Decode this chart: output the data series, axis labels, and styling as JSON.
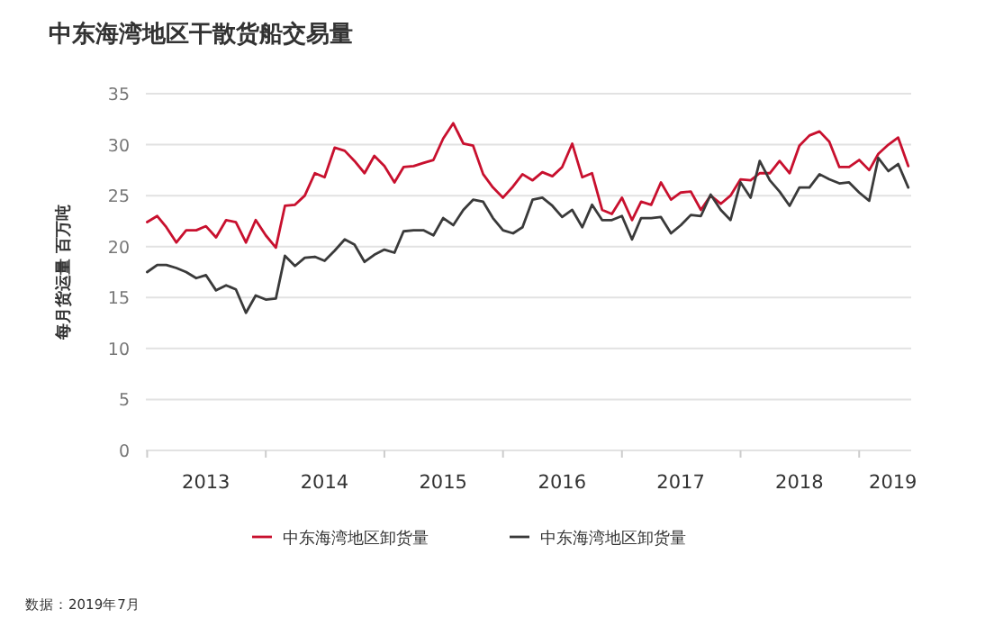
{
  "chart_data": {
    "type": "line",
    "title": "中东海湾地区干散货船交易量",
    "ylabel": "每月货运量 百万吨",
    "annotations": [
      "数据：2019年7月"
    ],
    "x": [
      "2013-01",
      "2013-02",
      "2013-03",
      "2013-04",
      "2013-05",
      "2013-06",
      "2013-07",
      "2013-08",
      "2013-09",
      "2013-10",
      "2013-11",
      "2013-12",
      "2014-01",
      "2014-02",
      "2014-03",
      "2014-04",
      "2014-05",
      "2014-06",
      "2014-07",
      "2014-08",
      "2014-09",
      "2014-10",
      "2014-11",
      "2014-12",
      "2015-01",
      "2015-02",
      "2015-03",
      "2015-04",
      "2015-05",
      "2015-06",
      "2015-07",
      "2015-08",
      "2015-09",
      "2015-10",
      "2015-11",
      "2015-12",
      "2016-01",
      "2016-02",
      "2016-03",
      "2016-04",
      "2016-05",
      "2016-06",
      "2016-07",
      "2016-08",
      "2016-09",
      "2016-10",
      "2016-11",
      "2016-12",
      "2017-01",
      "2017-02",
      "2017-03",
      "2017-04",
      "2017-05",
      "2017-06",
      "2017-07",
      "2017-08",
      "2017-09",
      "2017-10",
      "2017-11",
      "2017-12",
      "2018-01",
      "2018-02",
      "2018-03",
      "2018-04",
      "2018-05",
      "2018-06",
      "2018-07",
      "2018-08",
      "2018-09",
      "2018-10",
      "2018-11",
      "2018-12",
      "2019-01",
      "2019-02",
      "2019-03",
      "2019-04",
      "2019-05",
      "2019-06"
    ],
    "series": [
      {
        "name": "中东海湾地区卸货量",
        "color": "#c8102e",
        "values": [
          22.4,
          23,
          21.9,
          20.4,
          21.6,
          21.6,
          22,
          20.9,
          22.6,
          22.4,
          20.4,
          22.6,
          21.1,
          19.9,
          24,
          24.1,
          25,
          27.2,
          26.8,
          29.7,
          29.4,
          28.4,
          27.2,
          28.9,
          27.9,
          26.3,
          27.8,
          27.9,
          28.2,
          28.5,
          30.6,
          32.1,
          30.1,
          29.9,
          27.1,
          25.8,
          24.8,
          25.9,
          27.1,
          26.5,
          27.3,
          26.9,
          27.8,
          30.1,
          26.8,
          27.2,
          23.6,
          23.2,
          24.8,
          22.6,
          24.4,
          24.1,
          26.3,
          24.6,
          25.3,
          25.4,
          23.6,
          25,
          24.2,
          25,
          26.6,
          26.5,
          27.2,
          27.2,
          28.4,
          27.2,
          29.9,
          30.9,
          31.3,
          30.3,
          27.8,
          27.8,
          28.5,
          27.5,
          29.1,
          30,
          30.7,
          27.9
        ]
      },
      {
        "name": "中东海湾地区卸货量",
        "color": "#3a3a3a",
        "values": [
          17.5,
          18.2,
          18.2,
          17.9,
          17.5,
          16.9,
          17.2,
          15.7,
          16.2,
          15.8,
          13.5,
          15.2,
          14.8,
          14.9,
          19.1,
          18.1,
          18.9,
          19,
          18.6,
          19.6,
          20.7,
          20.2,
          18.5,
          19.2,
          19.7,
          19.4,
          21.5,
          21.6,
          21.6,
          21.1,
          22.8,
          22.1,
          23.6,
          24.6,
          24.4,
          22.8,
          21.6,
          21.3,
          21.9,
          24.6,
          24.8,
          24,
          22.9,
          23.6,
          21.9,
          24.1,
          22.6,
          22.6,
          23,
          20.7,
          22.8,
          22.8,
          22.9,
          21.3,
          22.1,
          23.1,
          23,
          25.1,
          23.6,
          22.6,
          26.3,
          24.8,
          28.4,
          26.5,
          25.4,
          24,
          25.8,
          25.8,
          27.1,
          26.6,
          26.2,
          26.3,
          25.3,
          24.5,
          28.7,
          27.4,
          28.1,
          25.8
        ]
      }
    ],
    "xlim": [
      "2012-12-28",
      "2019-06-10"
    ],
    "xticks": [
      {
        "value": "2013-01",
        "label": null
      },
      {
        "value": "2013-07",
        "label": "2013"
      },
      {
        "value": "2014-01",
        "label": null
      },
      {
        "value": "2014-07",
        "label": "2014"
      },
      {
        "value": "2015-01",
        "label": null
      },
      {
        "value": "2015-07",
        "label": "2015"
      },
      {
        "value": "2016-01",
        "label": null
      },
      {
        "value": "2016-07",
        "label": "2016"
      },
      {
        "value": "2017-01",
        "label": null
      },
      {
        "value": "2017-07",
        "label": "2017"
      },
      {
        "value": "2018-01",
        "label": null
      },
      {
        "value": "2018-07",
        "label": "2018"
      },
      {
        "value": "2019-01",
        "label": null
      },
      {
        "value": "2019-04-15",
        "label": "2019"
      }
    ],
    "ylim": [
      0,
      35
    ],
    "yticks": [
      0,
      5,
      10,
      15,
      20,
      25,
      30,
      35
    ],
    "grid": "y",
    "legend": "bottom",
    "marker": "none",
    "line_style": "solid"
  }
}
